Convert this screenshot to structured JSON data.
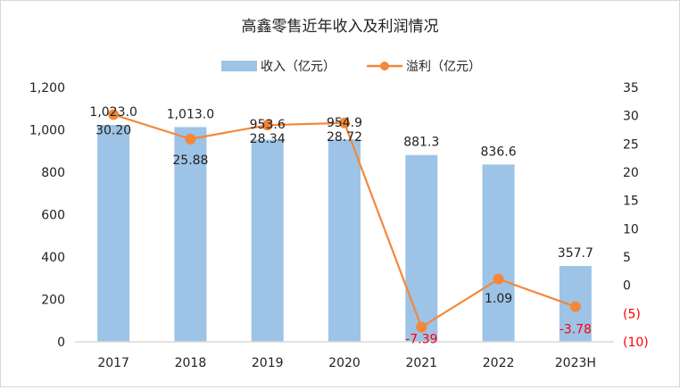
{
  "chart_data": {
    "type": "bar+line",
    "title": "高鑫零售近年收入及利润情况",
    "categories": [
      "2017",
      "2018",
      "2019",
      "2020",
      "2021",
      "2022",
      "2023H"
    ],
    "series": [
      {
        "name": "收入（亿元）",
        "type": "bar",
        "axis": "left",
        "color": "#9DC3E6",
        "values": [
          1023.0,
          1013.0,
          953.6,
          954.9,
          881.3,
          836.6,
          357.7
        ],
        "labels": [
          "1,023.0",
          "1,013.0",
          "953.6",
          "954.9",
          "881.3",
          "836.6",
          "357.7"
        ]
      },
      {
        "name": "溢利（亿元）",
        "type": "line",
        "axis": "right",
        "color": "#F4873A",
        "values": [
          30.2,
          25.88,
          28.34,
          28.72,
          -7.39,
          1.09,
          -3.78
        ],
        "labels": [
          "30.20",
          "25.88",
          "28.34",
          "28.72",
          "-7.39",
          "1.09",
          "-3.78"
        ]
      }
    ],
    "left_axis": {
      "ylim": [
        0,
        1200
      ],
      "ticks": [
        0,
        200,
        400,
        600,
        800,
        1000,
        1200
      ],
      "tick_labels": [
        "0",
        "200",
        "400",
        "600",
        "800",
        "1,000",
        "1,200"
      ]
    },
    "right_axis": {
      "ylim": [
        -10,
        35
      ],
      "ticks": [
        -10,
        -5,
        0,
        5,
        10,
        15,
        20,
        25,
        30,
        35
      ],
      "tick_labels": [
        "(10)",
        "(5)",
        "0",
        "5",
        "10",
        "15",
        "20",
        "25",
        "30",
        "35"
      ]
    },
    "negative_color": "#FF0000",
    "grid": false,
    "legend": "top-center"
  }
}
